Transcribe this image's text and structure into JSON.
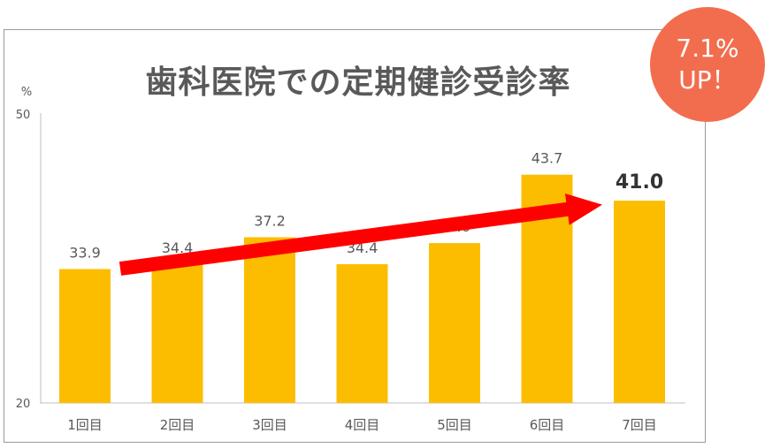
{
  "badge": {
    "line1": "7.1%",
    "line2": "UP！"
  },
  "colors": {
    "bar": "#fcbd00",
    "arrow": "#ff0000",
    "badge": "#f26d4e",
    "title": "#595959"
  },
  "chart_data": {
    "type": "bar",
    "title": "歯科医院での定期健診受診率",
    "ylabel": "%",
    "ylim": [
      20,
      50
    ],
    "yticks": [
      20,
      50
    ],
    "categories": [
      "1回目",
      "2回目",
      "3回目",
      "4回目",
      "5回目",
      "6回目",
      "7回目"
    ],
    "values": [
      33.9,
      34.4,
      37.2,
      34.4,
      36.6,
      43.7,
      41.0
    ],
    "data_labels": [
      "33.9",
      "34.4",
      "37.2",
      "34.4",
      "36.6",
      "43.7",
      "41.0"
    ],
    "highlight_index": 6,
    "grid": false,
    "annotation": {
      "type": "trend-arrow",
      "from_index": 0,
      "to_index": 6
    }
  }
}
